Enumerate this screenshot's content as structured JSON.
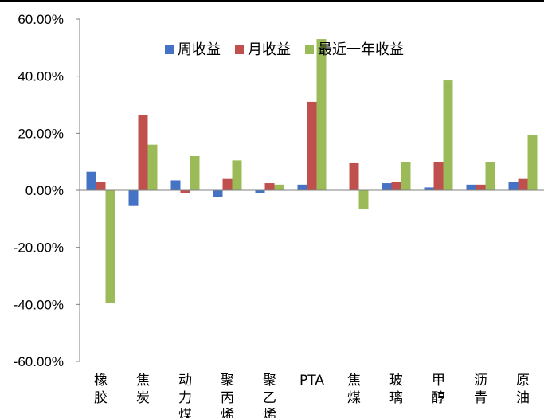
{
  "chart_data": {
    "type": "bar",
    "categories": [
      "橡胶",
      "焦炭",
      "动力煤",
      "聚丙烯",
      "聚乙烯",
      "PTA",
      "焦煤",
      "玻璃",
      "甲醇",
      "沥青",
      "原油"
    ],
    "series": [
      {
        "name": "周收益",
        "color": "#4472C4",
        "values": [
          6.5,
          -5.5,
          3.5,
          -2.5,
          -1.0,
          2.0,
          0.0,
          2.5,
          1.0,
          2.0,
          3.0
        ]
      },
      {
        "name": "月收益",
        "color": "#C0504D",
        "values": [
          3.0,
          26.5,
          -1.0,
          4.0,
          2.5,
          31.0,
          9.5,
          3.0,
          10.0,
          2.0,
          4.0
        ]
      },
      {
        "name": "最近一年收益",
        "color": "#9BBB59",
        "values": [
          -39.5,
          16.0,
          12.0,
          10.5,
          2.0,
          53.0,
          -6.5,
          10.0,
          38.5,
          10.0,
          19.5
        ]
      }
    ],
    "yticks": [
      "60.00%",
      "40.00%",
      "20.00%",
      "0.00%",
      "-20.00%",
      "-40.00%",
      "-60.00%"
    ],
    "ylim": [
      -60,
      60
    ],
    "legend_position": "top",
    "grid": false
  }
}
